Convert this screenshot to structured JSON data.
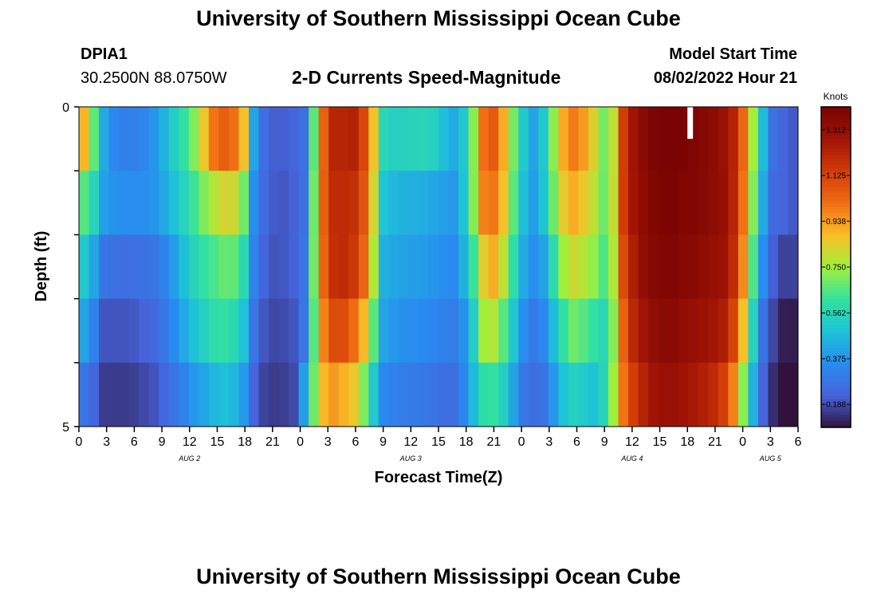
{
  "header": {
    "title": "University of Southern Mississippi Ocean Cube",
    "station_id": "DPIA1",
    "coords": "30.2500N  88.0750W",
    "subtitle": "2-D Currents Speed-Magnitude",
    "model_start_label": "Model Start Time",
    "model_start_value": "08/02/2022 Hour 21"
  },
  "footer": {
    "title": "University of Southern Mississippi Ocean Cube"
  },
  "chart_data": {
    "type": "heatmap",
    "title": "2-D Currents Speed-Magnitude",
    "xlabel": "Forecast Time(Z)",
    "ylabel": "Depth (ft)",
    "colorbar_label": "Knots",
    "x_range_hours": [
      0,
      78
    ],
    "x_tick_hours": [
      0,
      3,
      6,
      9,
      12,
      15,
      18,
      21,
      24,
      27,
      30,
      33,
      36,
      39,
      42,
      45,
      48,
      51,
      54,
      57,
      60,
      63,
      66,
      69,
      72,
      75,
      78
    ],
    "x_tick_labels": [
      "0",
      "3",
      "6",
      "9",
      "12",
      "15",
      "18",
      "21",
      "0",
      "3",
      "6",
      "9",
      "12",
      "15",
      "18",
      "21",
      "0",
      "3",
      "6",
      "9",
      "12",
      "15",
      "18",
      "21",
      "0",
      "3",
      "6"
    ],
    "date_labels": [
      {
        "hour": 12,
        "text": "AUG 2"
      },
      {
        "hour": 36,
        "text": "AUG 3"
      },
      {
        "hour": 60,
        "text": "AUG 4"
      },
      {
        "hour": 75,
        "text": "AUG 5"
      }
    ],
    "y_range": [
      0,
      5
    ],
    "y_tick_labels": [
      "0",
      "5"
    ],
    "depth_levels": 5,
    "colorbar_range": [
      0.094,
      1.406
    ],
    "colorbar_ticks": [
      "0.188",
      "0.375",
      "0.562",
      "0.750",
      "0.938",
      "1.125",
      "1.312"
    ],
    "colorbar_tick_values": [
      0.188,
      0.375,
      0.562,
      0.75,
      0.938,
      1.125,
      1.312
    ],
    "missing": [
      {
        "hour_start": 66.0,
        "hour_end": 66.6,
        "depth_start": 0,
        "depth_end": 0.5
      }
    ],
    "depth_profiles": [
      {
        "depth": 0.25,
        "values": [
          1.0,
          0.75,
          0.4,
          0.3,
          0.3,
          0.32,
          0.4,
          0.5,
          0.6,
          0.7,
          0.88,
          1.06,
          1.08,
          0.95,
          0.35,
          0.22,
          0.22,
          0.24,
          0.28,
          0.92,
          1.22,
          1.22,
          1.25,
          1.04,
          0.6,
          0.55,
          0.58,
          0.62,
          0.62,
          0.5,
          0.42,
          0.62,
          1.0,
          1.06,
          0.8,
          0.58,
          0.4,
          0.52,
          0.85,
          1.02,
          0.96,
          0.82,
          0.62,
          1.12,
          1.28,
          1.38,
          1.42,
          1.42,
          1.4,
          1.38,
          1.36,
          1.3,
          1.22,
          0.95,
          0.55,
          0.28,
          0.22,
          0.2
        ]
      },
      {
        "depth": 0.9,
        "values": [
          1.0,
          0.7,
          0.45,
          0.35,
          0.34,
          0.34,
          0.36,
          0.44,
          0.55,
          0.68,
          0.88,
          1.06,
          1.0,
          0.85,
          0.3,
          0.22,
          0.2,
          0.22,
          0.26,
          0.95,
          1.22,
          1.22,
          1.2,
          1.0,
          0.55,
          0.52,
          0.5,
          0.48,
          0.45,
          0.42,
          0.4,
          0.6,
          1.02,
          1.1,
          0.85,
          0.5,
          0.42,
          0.55,
          0.86,
          0.98,
          0.9,
          0.8,
          0.6,
          1.12,
          1.3,
          1.36,
          1.42,
          1.42,
          1.4,
          1.38,
          1.35,
          1.32,
          1.2,
          0.9,
          0.5,
          0.25,
          0.22,
          0.2
        ]
      },
      {
        "depth": 1.5,
        "values": [
          0.7,
          0.6,
          0.4,
          0.36,
          0.36,
          0.36,
          0.38,
          0.44,
          0.52,
          0.62,
          0.72,
          0.8,
          0.85,
          0.72,
          0.3,
          0.22,
          0.2,
          0.22,
          0.28,
          0.96,
          1.2,
          1.2,
          1.18,
          1.0,
          0.5,
          0.46,
          0.44,
          0.44,
          0.42,
          0.4,
          0.38,
          0.62,
          0.98,
          1.0,
          0.8,
          0.5,
          0.4,
          0.52,
          0.8,
          0.92,
          0.86,
          0.78,
          0.62,
          1.12,
          1.28,
          1.36,
          1.4,
          1.4,
          1.38,
          1.38,
          1.35,
          1.32,
          1.2,
          0.9,
          0.48,
          0.25,
          0.22,
          0.2
        ]
      },
      {
        "depth": 2.5,
        "values": [
          0.55,
          0.45,
          0.28,
          0.26,
          0.26,
          0.27,
          0.28,
          0.34,
          0.45,
          0.55,
          0.62,
          0.66,
          0.7,
          0.6,
          0.28,
          0.2,
          0.2,
          0.22,
          0.3,
          0.95,
          1.18,
          1.2,
          1.15,
          0.95,
          0.45,
          0.42,
          0.4,
          0.4,
          0.38,
          0.36,
          0.35,
          0.55,
          0.84,
          0.92,
          0.72,
          0.45,
          0.36,
          0.42,
          0.7,
          0.82,
          0.78,
          0.72,
          0.6,
          1.08,
          1.25,
          1.35,
          1.38,
          1.38,
          1.36,
          1.35,
          1.32,
          1.3,
          1.18,
          0.85,
          0.4,
          0.22,
          0.16,
          0.18
        ]
      },
      {
        "depth": 3.5,
        "values": [
          0.45,
          0.35,
          0.2,
          0.2,
          0.2,
          0.22,
          0.24,
          0.3,
          0.4,
          0.48,
          0.55,
          0.62,
          0.6,
          0.5,
          0.25,
          0.18,
          0.18,
          0.2,
          0.3,
          0.9,
          1.1,
          1.1,
          1.0,
          0.8,
          0.42,
          0.38,
          0.36,
          0.36,
          0.34,
          0.32,
          0.3,
          0.45,
          0.75,
          0.78,
          0.6,
          0.38,
          0.3,
          0.35,
          0.55,
          0.7,
          0.66,
          0.6,
          0.55,
          1.02,
          1.22,
          1.3,
          1.35,
          1.35,
          1.32,
          1.3,
          1.28,
          1.25,
          1.1,
          0.75,
          0.3,
          0.18,
          0.1,
          0.12
        ]
      },
      {
        "depth": 4.5,
        "values": [
          0.3,
          0.25,
          0.16,
          0.16,
          0.16,
          0.18,
          0.2,
          0.25,
          0.3,
          0.38,
          0.42,
          0.48,
          0.48,
          0.4,
          0.2,
          0.16,
          0.16,
          0.18,
          0.45,
          0.85,
          0.95,
          0.9,
          0.85,
          0.6,
          0.35,
          0.32,
          0.3,
          0.3,
          0.28,
          0.26,
          0.26,
          0.42,
          0.6,
          0.62,
          0.5,
          0.3,
          0.26,
          0.28,
          0.45,
          0.55,
          0.52,
          0.48,
          0.62,
          0.98,
          1.15,
          1.25,
          1.3,
          1.3,
          1.28,
          1.25,
          1.22,
          1.15,
          0.95,
          0.6,
          0.25,
          0.14,
          0.06,
          0.08
        ]
      }
    ]
  }
}
